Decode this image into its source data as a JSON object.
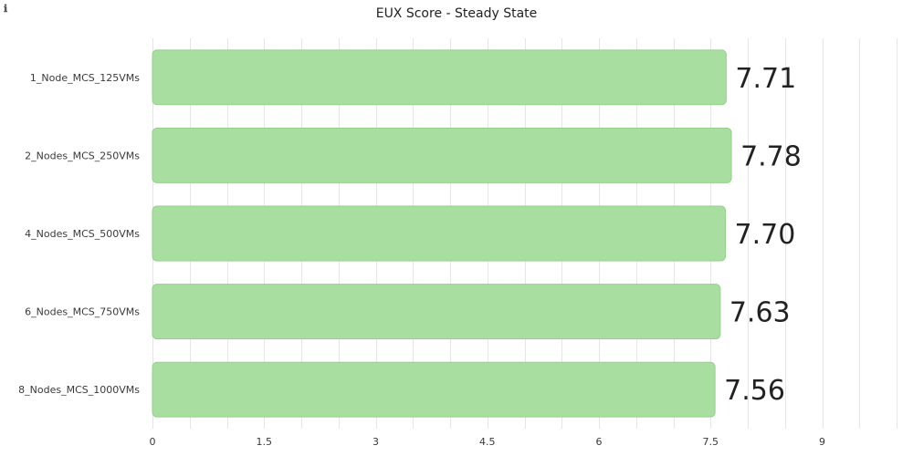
{
  "header": {
    "info_icon": "ℹ"
  },
  "chart_data": {
    "type": "bar",
    "orientation": "horizontal",
    "title": "EUX Score - Steady State",
    "categories": [
      "1_Node_MCS_125VMs",
      "2_Nodes_MCS_250VMs",
      "4_Nodes_MCS_500VMs",
      "6_Nodes_MCS_750VMs",
      "8_Nodes_MCS_1000VMs"
    ],
    "values": [
      7.71,
      7.78,
      7.7,
      7.63,
      7.56
    ],
    "data_labels": [
      "7.71",
      "7.78",
      "7.70",
      "7.63",
      "7.56"
    ],
    "xlim": [
      0,
      10
    ],
    "xticks": [
      0,
      1.5,
      3,
      4.5,
      6,
      7.5,
      9
    ],
    "xtick_labels": [
      "0",
      "1.5",
      "3",
      "4.5",
      "6",
      "7.5",
      "9"
    ],
    "minor_step": 0.5,
    "bar_color": "#a8dea0",
    "bar_stroke": "#96d08c",
    "grid": true,
    "legend": "none"
  }
}
